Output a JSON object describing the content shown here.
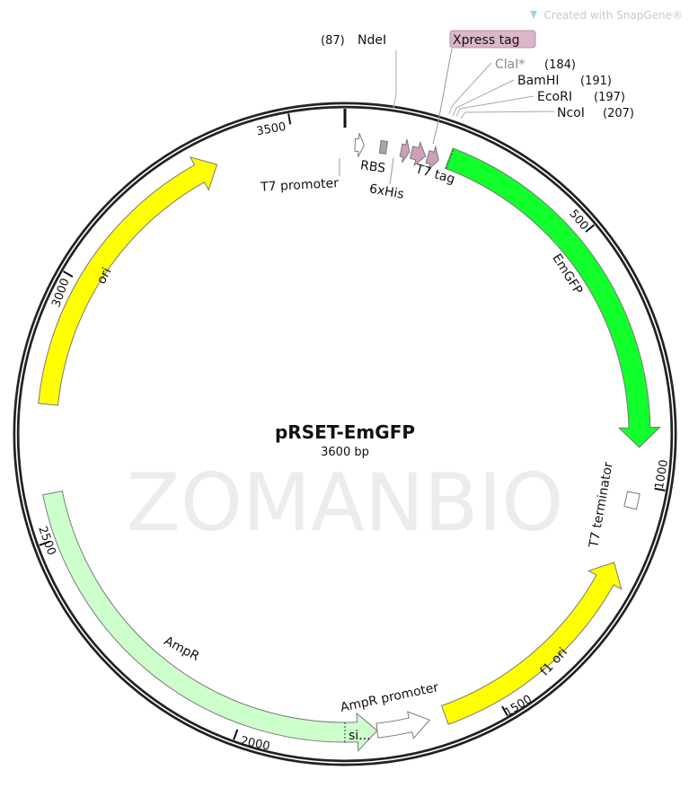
{
  "credit": "Created with SnapGene®",
  "watermark": "ZOMANBIO",
  "plasmid": {
    "name": "pRSET-EmGFP",
    "length_label": "3600 bp",
    "length_bp": 3600
  },
  "colors": {
    "emgfp": "#11ff2a",
    "ori": "#ffff00",
    "ampr": "#ccffcc",
    "tag": "#cc9fb9",
    "rbs": "#a2a7ae",
    "xpress_box": "#dcb6ca",
    "cla_gray": "#888888"
  },
  "ticks": [
    "500",
    "1000",
    "1500",
    "2000",
    "2500",
    "3000",
    "3500"
  ],
  "features": [
    {
      "name": "T7 promoter",
      "start": 20,
      "end": 38,
      "direction": "forward",
      "color": "#ffffff"
    },
    {
      "name": "RBS",
      "start": 70,
      "end": 83,
      "direction": "none",
      "color": "#a2a7ae"
    },
    {
      "name": "6xHis",
      "start": 112,
      "end": 129,
      "direction": "forward",
      "color": "#cc9fb9"
    },
    {
      "name": "T7 tag",
      "start": 133,
      "end": 162,
      "direction": "forward",
      "color": "#cc9fb9"
    },
    {
      "name": "Xpress tag",
      "start": 166,
      "end": 189,
      "direction": "forward",
      "color": "#cc9fb9"
    },
    {
      "name": "EmGFP",
      "start": 207,
      "end": 926,
      "direction": "forward",
      "color": "#11ff2a"
    },
    {
      "name": "T7 terminator",
      "start": 1015,
      "end": 1045,
      "direction": "none",
      "color": "#ffffff"
    },
    {
      "name": "f1 ori",
      "start": 1155,
      "end": 1604,
      "direction": "reverse",
      "color": "#ffff00"
    },
    {
      "name": "AmpR promoter",
      "start": 1635,
      "end": 1738,
      "direction": "reverse",
      "color": "#ffffff"
    },
    {
      "name": "AmpR",
      "start": 1738,
      "end": 2586,
      "direction": "reverse",
      "color": "#ccffcc"
    },
    {
      "name": "ori",
      "start": 2757,
      "end": 3346,
      "direction": "forward",
      "color": "#ffff00"
    }
  ],
  "signal_label": "si...",
  "enzymes": [
    {
      "name": "NdeI",
      "pos": "(87)"
    },
    {
      "name": "ClaI*",
      "pos": "(184)"
    },
    {
      "name": "BamHI",
      "pos": "(191)"
    },
    {
      "name": "EcoRI",
      "pos": "(197)"
    },
    {
      "name": "NcoI",
      "pos": "(207)"
    }
  ]
}
